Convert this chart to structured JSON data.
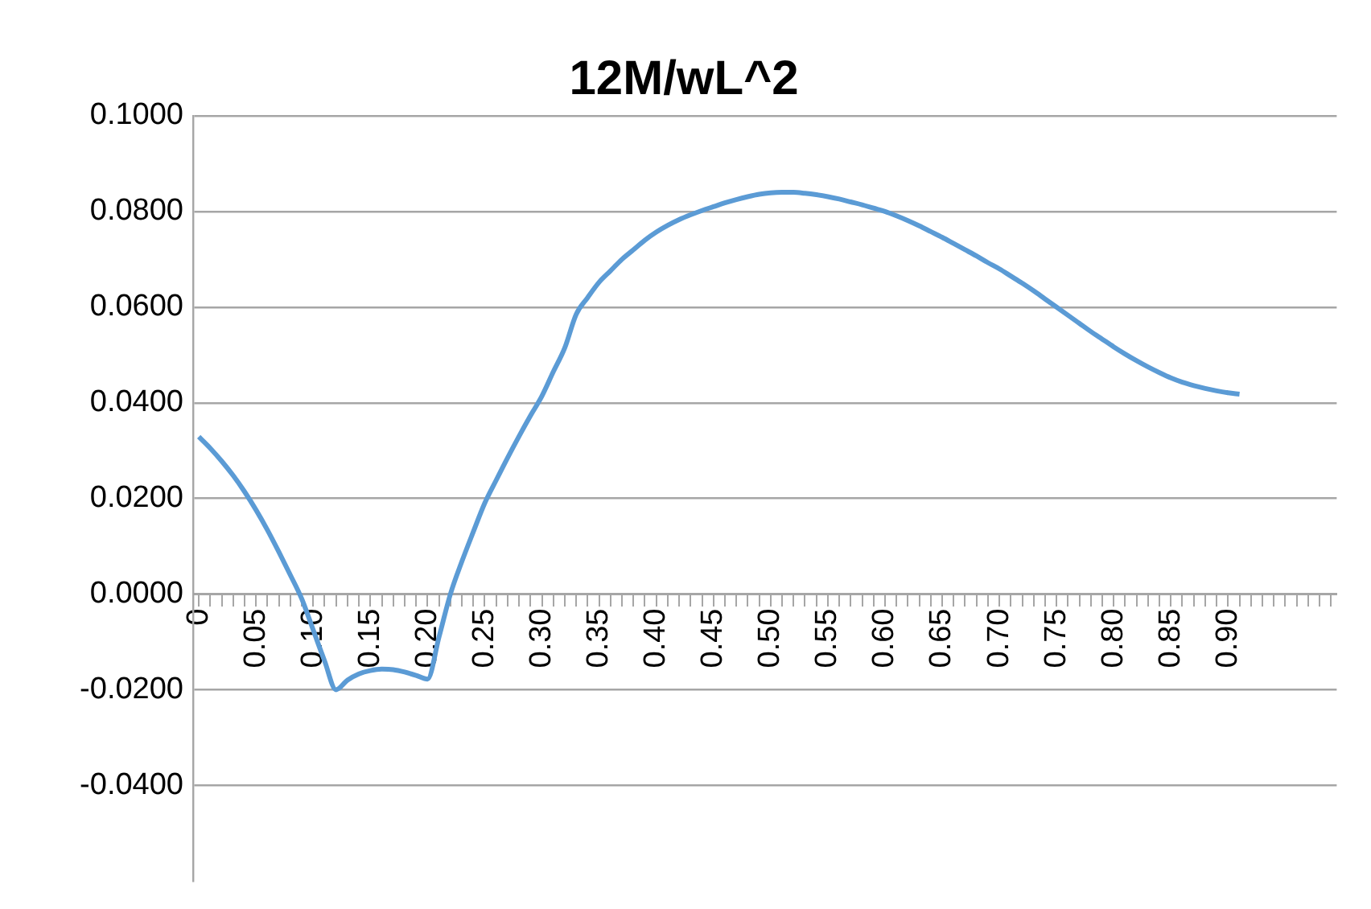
{
  "chart_data": {
    "type": "line",
    "title": "12M/wL^2",
    "categories": [
      "0",
      null,
      null,
      null,
      null,
      "0.05",
      null,
      null,
      null,
      null,
      "0.10",
      null,
      null,
      null,
      null,
      "0.15",
      null,
      null,
      null,
      null,
      "0.20",
      null,
      null,
      null,
      null,
      "0.25",
      null,
      null,
      null,
      null,
      "0.30",
      null,
      null,
      null,
      null,
      "0.35",
      null,
      null,
      null,
      null,
      "0.40",
      null,
      null,
      null,
      null,
      "0.45",
      null,
      null,
      null,
      null,
      "0.50",
      null,
      null,
      null,
      null,
      "0.55",
      null,
      null,
      null,
      null,
      "0.60",
      null,
      null,
      null,
      null,
      "0.65",
      null,
      null,
      null,
      null,
      "0.70",
      null,
      null,
      null,
      null,
      "0.75",
      null,
      null,
      null,
      null,
      "0.80",
      null,
      null,
      null,
      null,
      "0.85",
      null,
      null,
      null,
      null,
      "0.90",
      null,
      null,
      null,
      null,
      null,
      null,
      null,
      null,
      null
    ],
    "values": [
      0.0329,
      0.0305,
      0.0278,
      0.0248,
      0.0214,
      0.0176,
      0.0134,
      0.0088,
      0.004,
      -0.001,
      -0.0075,
      -0.014,
      -0.02,
      -0.018,
      -0.0167,
      -0.016,
      -0.0157,
      -0.0158,
      -0.0163,
      -0.017,
      -0.0178,
      -0.009,
      0.0,
      0.0068,
      0.013,
      0.019,
      0.0238,
      0.0285,
      0.033,
      0.0373,
      0.0414,
      0.0465,
      0.0515,
      0.0585,
      0.062,
      0.0652,
      0.0676,
      0.07,
      0.072,
      0.074,
      0.0757,
      0.0771,
      0.0783,
      0.0793,
      0.0802,
      0.081,
      0.0818,
      0.0825,
      0.0831,
      0.0836,
      0.0839,
      0.084,
      0.084,
      0.0838,
      0.0835,
      0.0831,
      0.0826,
      0.082,
      0.0814,
      0.0807,
      0.08,
      0.0791,
      0.0781,
      0.077,
      0.0758,
      0.0746,
      0.0733,
      0.072,
      0.0707,
      0.0693,
      0.068,
      0.0665,
      0.065,
      0.0634,
      0.0617,
      0.06,
      0.0583,
      0.0566,
      0.0549,
      0.0533,
      0.0517,
      0.0502,
      0.0488,
      0.0475,
      0.0463,
      0.0452,
      0.0443,
      0.0436,
      0.043,
      0.0425,
      0.0421,
      0.0418,
      null,
      null,
      null,
      null,
      null,
      null,
      null,
      null
    ],
    "color": "#5b9bd5",
    "marker": "none",
    "grid": "y",
    "ylim": [
      -0.06,
      0.1
    ],
    "yticks": [
      {
        "value": -0.04,
        "label": "-0.0400"
      },
      {
        "value": -0.02,
        "label": "-0.0200"
      },
      {
        "value": 0,
        "label": "0.0000"
      },
      {
        "value": 0.02,
        "label": "0.0200"
      },
      {
        "value": 0.04,
        "label": "0.0400"
      },
      {
        "value": 0.06,
        "label": "0.0600"
      },
      {
        "value": 0.08,
        "label": "0.0800"
      },
      {
        "value": 0.1,
        "label": "0.1000"
      }
    ]
  }
}
